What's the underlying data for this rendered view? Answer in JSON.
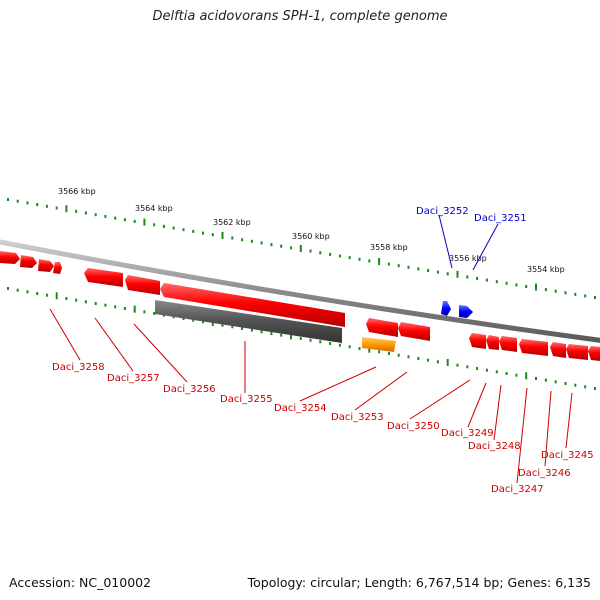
{
  "title": "Delftia acidovorans SPH-1, complete genome",
  "footer": {
    "accession": "Accession: NC_010002",
    "summary": "Topology: circular; Length: 6,767,514 bp; Genes: 6,135"
  },
  "colors": {
    "forward_gene": "#ff0000",
    "highlight_gene": "#0000ff",
    "pseudo_gene": "#555555",
    "rna_gene": "#ff9900",
    "backbone": "#8c8c8c",
    "ticks": "#1a8a1a",
    "forward_label": "#cc0000",
    "highlight_label": "#0000cc"
  },
  "scale_labels": [
    "3566 kbp",
    "3564 kbp",
    "3562 kbp",
    "3560 kbp",
    "3558 kbp",
    "3556 kbp",
    "3554 kbp"
  ],
  "genes_top": [
    {
      "label": "Daci_3252",
      "color": "highlight"
    },
    {
      "label": "Daci_3251",
      "color": "highlight"
    }
  ],
  "genes_bottom": [
    {
      "label": "Daci_3258"
    },
    {
      "label": "Daci_3257"
    },
    {
      "label": "Daci_3256"
    },
    {
      "label": "Daci_3255"
    },
    {
      "label": "Daci_3254"
    },
    {
      "label": "Daci_3253"
    },
    {
      "label": "Daci_3250"
    },
    {
      "label": "Daci_3249"
    },
    {
      "label": "Daci_3248"
    },
    {
      "label": "Daci_3247"
    },
    {
      "label": "Daci_3246"
    },
    {
      "label": "Daci_3245"
    }
  ]
}
